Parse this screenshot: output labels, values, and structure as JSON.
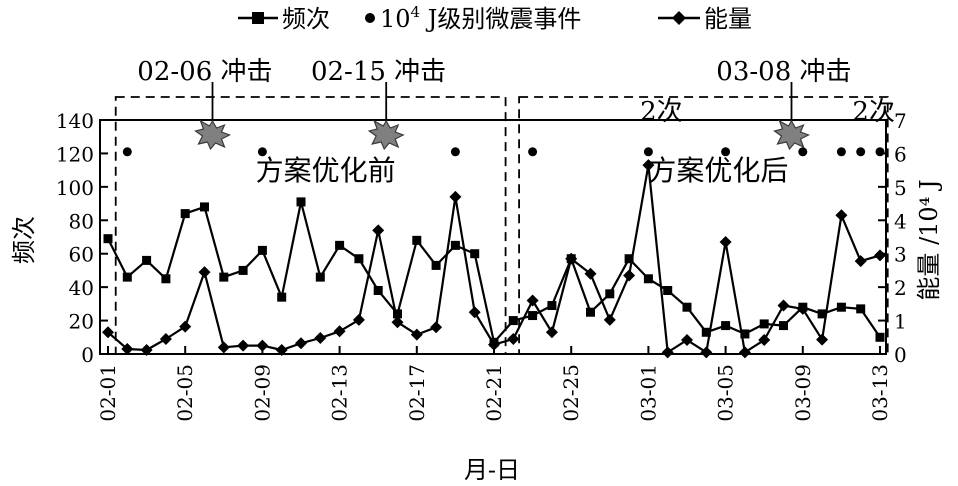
{
  "chart_data": {
    "type": "line",
    "xlabel": "月-日",
    "ylabel_left": "频次",
    "ylabel_right": "能量 /10⁴ J",
    "ylim_left": [
      0,
      140
    ],
    "ylim_right": [
      0,
      7
    ],
    "yticks_left": [
      0,
      20,
      40,
      60,
      80,
      100,
      120,
      140
    ],
    "yticks_right": [
      0,
      1,
      2,
      3,
      4,
      5,
      6,
      7
    ],
    "xticks": [
      {
        "day": 0,
        "label": "02-01"
      },
      {
        "day": 4,
        "label": "02-05"
      },
      {
        "day": 8,
        "label": "02-09"
      },
      {
        "day": 12,
        "label": "02-13"
      },
      {
        "day": 16,
        "label": "02-17"
      },
      {
        "day": 20,
        "label": "02-21"
      },
      {
        "day": 24,
        "label": "02-25"
      },
      {
        "day": 28,
        "label": "03-01"
      },
      {
        "day": 32,
        "label": "03-05"
      },
      {
        "day": 36,
        "label": "03-09"
      },
      {
        "day": 40,
        "label": "03-13"
      }
    ],
    "legend": {
      "frequency": "频次",
      "event_prefix": "10",
      "event_sup": "4",
      "event_suffix": " J级别微震事件",
      "energy": "能量"
    },
    "series": [
      {
        "name": "频次",
        "axis": "left",
        "marker": "square",
        "x": [
          0,
          1,
          2,
          3,
          4,
          5,
          6,
          7,
          8,
          9,
          10,
          11,
          12,
          13,
          14,
          15,
          16,
          17,
          18,
          19,
          20,
          21,
          22,
          23,
          24,
          25,
          26,
          27,
          28,
          29,
          30,
          31,
          32,
          33,
          34,
          35,
          36,
          37,
          38,
          39,
          40
        ],
        "values": [
          69,
          46,
          56,
          45,
          84,
          88,
          46,
          50,
          62,
          34,
          91,
          46,
          65,
          57,
          38,
          24,
          68,
          53,
          65,
          60,
          7,
          20,
          23,
          29,
          57,
          25,
          36,
          57,
          45,
          38,
          28,
          13,
          17,
          12,
          18,
          17,
          28,
          24,
          28,
          27,
          10
        ]
      },
      {
        "name": "能量",
        "axis": "right",
        "marker": "diamond",
        "x": [
          0,
          1,
          2,
          3,
          4,
          5,
          6,
          7,
          8,
          9,
          10,
          11,
          12,
          13,
          14,
          15,
          16,
          17,
          18,
          19,
          20,
          21,
          22,
          23,
          24,
          25,
          26,
          27,
          28,
          29,
          30,
          31,
          32,
          33,
          34,
          35,
          36,
          37,
          38,
          39,
          40
        ],
        "values": [
          0.65,
          0.15,
          0.12,
          0.45,
          0.82,
          2.45,
          0.2,
          0.25,
          0.25,
          0.12,
          0.32,
          0.48,
          0.68,
          1.02,
          3.7,
          0.95,
          0.58,
          0.8,
          4.7,
          1.25,
          0.28,
          0.45,
          1.6,
          0.65,
          2.85,
          2.4,
          1.02,
          2.35,
          5.65,
          0.05,
          0.42,
          0.05,
          3.35,
          0.05,
          0.42,
          1.45,
          1.35,
          0.43,
          4.15,
          2.78,
          2.95
        ]
      },
      {
        "name": "10⁴ J级别微震事件",
        "axis": "right",
        "marker": "dot",
        "x": [
          1,
          8,
          18,
          22,
          28,
          32,
          36,
          38,
          39,
          40
        ],
        "values": [
          6.05,
          6.05,
          6.05,
          6.05,
          6.05,
          6.05,
          6.05,
          6.05,
          6.05,
          6.05
        ]
      }
    ],
    "impacts": [
      {
        "day": 5,
        "label": "02-06 冲击"
      },
      {
        "day": 14,
        "label": "02-15 冲击"
      },
      {
        "day": 35,
        "label": "03-08 冲击"
      }
    ],
    "regions": [
      {
        "label": "方案优化前",
        "day_start": 0.4,
        "day_end": 20.6
      },
      {
        "label": "方案优化后",
        "day_start": 21.3,
        "day_end": 40.4
      }
    ],
    "notes": [
      {
        "day": 28,
        "text": "2次"
      },
      {
        "day": 39,
        "text": "2次"
      }
    ]
  }
}
